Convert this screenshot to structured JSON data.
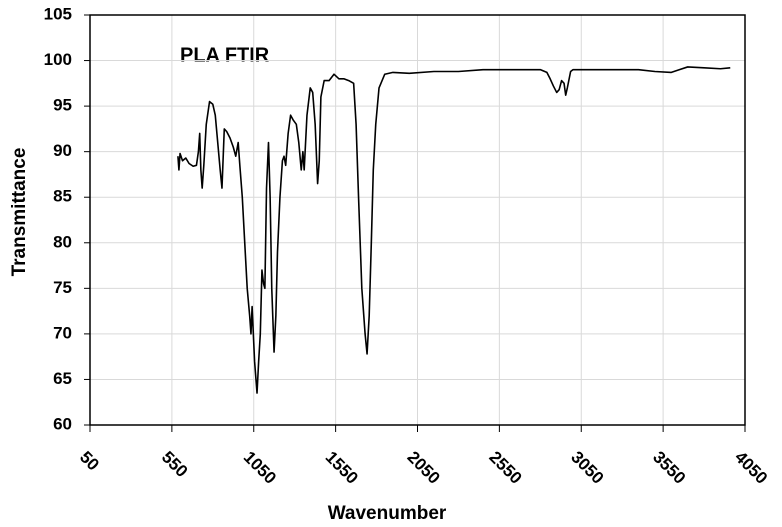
{
  "chart_data": {
    "type": "line",
    "annotation": "PLA FTIR",
    "xlabel": "Wavenumber",
    "ylabel": "Transmittance",
    "x": [
      587,
      593,
      600,
      615,
      635,
      655,
      680,
      700,
      712,
      720,
      727,
      735,
      745,
      760,
      780,
      800,
      815,
      830,
      845,
      856,
      870,
      885,
      905,
      925,
      940,
      955,
      965,
      980,
      995,
      1010,
      1025,
      1033,
      1040,
      1055,
      1070,
      1080,
      1090,
      1100,
      1110,
      1118,
      1128,
      1140,
      1150,
      1160,
      1174,
      1185,
      1195,
      1210,
      1225,
      1235,
      1245,
      1260,
      1275,
      1290,
      1310,
      1325,
      1340,
      1350,
      1358,
      1375,
      1395,
      1410,
      1425,
      1440,
      1450,
      1460,
      1480,
      1510,
      1540,
      1570,
      1600,
      1630,
      1660,
      1675,
      1690,
      1710,
      1730,
      1742,
      1755,
      1768,
      1780,
      1795,
      1815,
      1850,
      1900,
      2000,
      2150,
      2300,
      2450,
      2650,
      2800,
      2840,
      2860,
      2880,
      2900,
      2915,
      2930,
      2945,
      2955,
      2965,
      2985,
      3000,
      3200,
      3400,
      3500,
      3600,
      3650,
      3700,
      3800,
      3900,
      3960
    ],
    "values": [
      89.5,
      88,
      89.8,
      89,
      89.3,
      88.7,
      88.4,
      88.5,
      90,
      92,
      88,
      86,
      88.5,
      93,
      95.5,
      95.2,
      94,
      91,
      88,
      86,
      92.5,
      92.2,
      91.5,
      90.5,
      89.5,
      91,
      88.5,
      85,
      80,
      75,
      72,
      70,
      73,
      67,
      63.5,
      67,
      70,
      77,
      75.5,
      75,
      86,
      91,
      85,
      75,
      68,
      72,
      79,
      85,
      89,
      89.5,
      88.5,
      92,
      94,
      93.5,
      93,
      91,
      88,
      90,
      88,
      94,
      97,
      96.5,
      93,
      86.5,
      89,
      96,
      97.8,
      97.8,
      98.5,
      98,
      98,
      97.8,
      97.5,
      93,
      85,
      75,
      70,
      67.8,
      72,
      80,
      88,
      93,
      97,
      98.5,
      98.7,
      98.6,
      98.8,
      98.8,
      99,
      99,
      99,
      98.7,
      98,
      97.2,
      96.5,
      96.8,
      97.8,
      97.5,
      96.2,
      97,
      98.8,
      99,
      99,
      99,
      98.8,
      98.7,
      99,
      99.3,
      99.2,
      99.1,
      99.2
    ],
    "color": "#000000",
    "xlim": [
      50,
      4050
    ],
    "xticks": [
      50,
      550,
      1050,
      1550,
      2050,
      2550,
      3050,
      3550,
      4050
    ],
    "ylim": [
      60,
      105
    ],
    "yticks": [
      60,
      65,
      70,
      75,
      80,
      85,
      90,
      95,
      100,
      105
    ],
    "grid": true
  }
}
